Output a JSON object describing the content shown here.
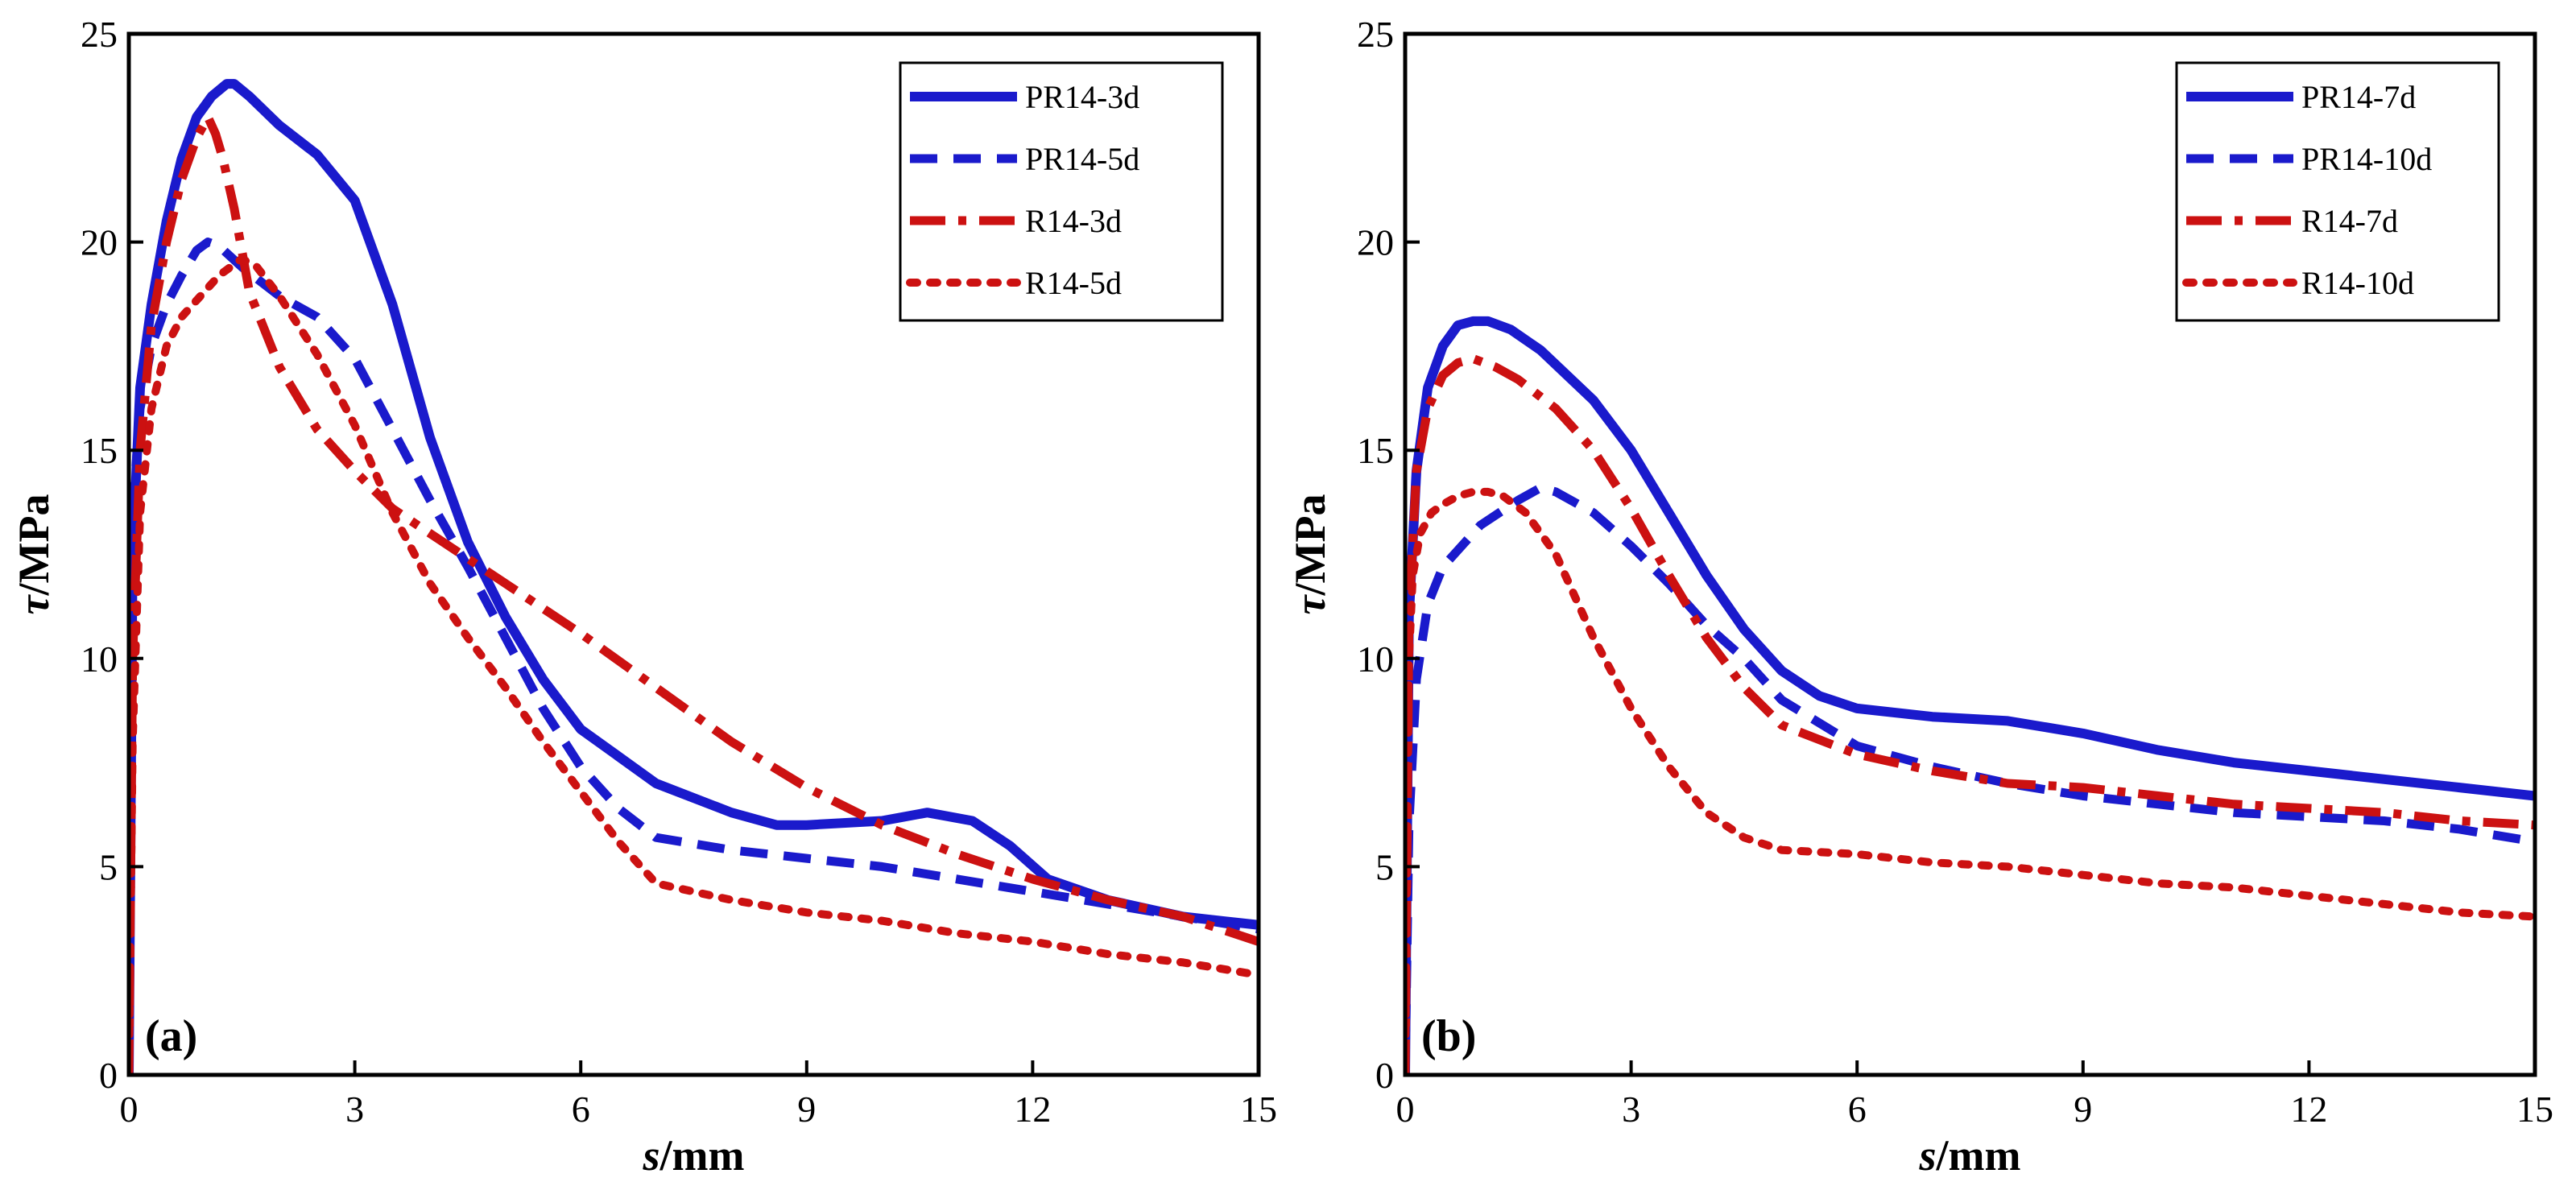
{
  "chart_data": [
    {
      "type": "line",
      "panel_label": "(a)",
      "xlabel_italic": "s",
      "xlabel_rest": "/mm",
      "ylabel_italic": "τ",
      "ylabel_rest": "/MPa",
      "xlim": [
        0,
        15
      ],
      "ylim": [
        0,
        25
      ],
      "xticks": [
        0,
        3,
        6,
        9,
        12,
        15
      ],
      "yticks": [
        0,
        5,
        10,
        15,
        20,
        25
      ],
      "legend_position": "top-right",
      "series": [
        {
          "name": "PR14-3d",
          "color": "#1a1acc",
          "style": "solid",
          "x": [
            0,
            0.05,
            0.15,
            0.3,
            0.5,
            0.7,
            0.9,
            1.1,
            1.3,
            1.4,
            1.6,
            2.0,
            2.5,
            3.0,
            3.5,
            4.0,
            4.5,
            5.0,
            5.5,
            6.0,
            7.0,
            8.0,
            8.6,
            9.0,
            10.0,
            10.6,
            11.2,
            11.7,
            12.2,
            13.0,
            14.0,
            15.0
          ],
          "y": [
            0,
            12.5,
            16.5,
            18.5,
            20.5,
            22.0,
            23.0,
            23.5,
            23.8,
            23.8,
            23.5,
            22.8,
            22.1,
            21.0,
            18.5,
            15.3,
            12.8,
            11.0,
            9.5,
            8.3,
            7.0,
            6.3,
            6.0,
            6.0,
            6.1,
            6.3,
            6.1,
            5.5,
            4.7,
            4.2,
            3.8,
            3.6
          ]
        },
        {
          "name": "PR14-5d",
          "color": "#1a1acc",
          "style": "dashed",
          "x": [
            0,
            0.05,
            0.15,
            0.3,
            0.5,
            0.7,
            0.9,
            1.05,
            1.2,
            1.5,
            2.0,
            2.5,
            3.0,
            3.5,
            4.0,
            4.5,
            5.0,
            5.5,
            6.0,
            6.5,
            7.0,
            8.0,
            9.0,
            10.0,
            11.0,
            12.0,
            13.0,
            14.0,
            15.0
          ],
          "y": [
            0,
            13.5,
            16.0,
            17.5,
            18.5,
            19.2,
            19.8,
            20.0,
            19.9,
            19.4,
            18.7,
            18.2,
            17.2,
            15.5,
            13.8,
            12.2,
            10.5,
            8.8,
            7.4,
            6.4,
            5.7,
            5.4,
            5.2,
            5.0,
            4.7,
            4.4,
            4.1,
            3.8,
            3.5
          ]
        },
        {
          "name": "R14-3d",
          "color": "#cc1111",
          "style": "dashdot",
          "x": [
            0,
            0.05,
            0.15,
            0.3,
            0.5,
            0.7,
            0.9,
            1.05,
            1.15,
            1.25,
            1.4,
            1.6,
            2.0,
            2.5,
            3.0,
            3.5,
            4.0,
            5.0,
            6.0,
            7.0,
            8.0,
            9.0,
            10.0,
            11.0,
            12.0,
            13.0,
            14.0,
            15.0
          ],
          "y": [
            0,
            10.0,
            15.0,
            18.0,
            20.0,
            21.5,
            22.5,
            23.0,
            22.6,
            22.0,
            20.8,
            18.8,
            17.0,
            15.5,
            14.5,
            13.6,
            13.0,
            11.8,
            10.6,
            9.3,
            8.0,
            6.9,
            6.0,
            5.3,
            4.7,
            4.2,
            3.8,
            3.2
          ]
        },
        {
          "name": "R14-5d",
          "color": "#cc1111",
          "style": "dotted",
          "x": [
            0,
            0.05,
            0.15,
            0.3,
            0.5,
            0.7,
            1.0,
            1.2,
            1.5,
            1.7,
            2.0,
            2.5,
            3.0,
            3.5,
            4.0,
            4.5,
            5.0,
            5.5,
            6.0,
            6.5,
            7.0,
            8.0,
            9.0,
            10.0,
            11.0,
            12.0,
            13.0,
            14.0,
            15.0
          ],
          "y": [
            0,
            8.0,
            13.5,
            16.0,
            17.5,
            18.2,
            18.8,
            19.2,
            19.6,
            19.4,
            18.7,
            17.3,
            15.6,
            13.5,
            11.8,
            10.5,
            9.3,
            8.0,
            6.8,
            5.6,
            4.6,
            4.2,
            3.9,
            3.7,
            3.4,
            3.2,
            2.9,
            2.7,
            2.4
          ]
        }
      ]
    },
    {
      "type": "line",
      "panel_label": "(b)",
      "xlabel_italic": "s",
      "xlabel_rest": "/mm",
      "ylabel_italic": "τ",
      "ylabel_rest": "/MPa",
      "xlim": [
        0,
        15
      ],
      "ylim": [
        0,
        25
      ],
      "xticks": [
        0,
        3,
        6,
        9,
        12,
        15
      ],
      "yticks": [
        0,
        5,
        10,
        15,
        20,
        25
      ],
      "legend_position": "top-right",
      "series": [
        {
          "name": "PR14-7d",
          "color": "#1a1acc",
          "style": "solid",
          "x": [
            0,
            0.05,
            0.15,
            0.3,
            0.5,
            0.7,
            0.9,
            1.1,
            1.4,
            1.8,
            2.5,
            3.0,
            3.5,
            4.0,
            4.5,
            5.0,
            5.5,
            6.0,
            7.0,
            8.0,
            9.0,
            10.0,
            11.0,
            12.0,
            13.0,
            14.0,
            15.0
          ],
          "y": [
            0,
            11.0,
            14.5,
            16.5,
            17.5,
            18.0,
            18.1,
            18.1,
            17.9,
            17.4,
            16.2,
            15.0,
            13.5,
            12.0,
            10.7,
            9.7,
            9.1,
            8.8,
            8.6,
            8.5,
            8.2,
            7.8,
            7.5,
            7.3,
            7.1,
            6.9,
            6.7
          ]
        },
        {
          "name": "PR14-10d",
          "color": "#1a1acc",
          "style": "dashed",
          "x": [
            0,
            0.05,
            0.15,
            0.3,
            0.5,
            0.8,
            1.0,
            1.5,
            1.8,
            2.0,
            2.5,
            3.0,
            3.5,
            4.0,
            4.5,
            5.0,
            6.0,
            7.0,
            8.0,
            9.0,
            10.0,
            11.0,
            12.0,
            13.0,
            14.0,
            15.0
          ],
          "y": [
            0,
            6.0,
            9.5,
            11.3,
            12.2,
            12.8,
            13.2,
            13.8,
            14.1,
            14.0,
            13.5,
            12.7,
            11.8,
            10.8,
            10.0,
            9.0,
            7.9,
            7.4,
            7.0,
            6.7,
            6.5,
            6.3,
            6.2,
            6.1,
            5.9,
            5.6
          ]
        },
        {
          "name": "R14-7d",
          "color": "#cc1111",
          "style": "dashdot",
          "x": [
            0,
            0.05,
            0.15,
            0.3,
            0.5,
            0.7,
            0.9,
            1.2,
            1.5,
            2.0,
            2.5,
            3.0,
            3.5,
            4.0,
            4.5,
            5.0,
            6.0,
            7.0,
            8.0,
            9.0,
            10.0,
            11.0,
            12.0,
            13.0,
            14.0,
            15.0
          ],
          "y": [
            0,
            11.0,
            14.5,
            16.0,
            16.8,
            17.1,
            17.2,
            17.0,
            16.7,
            16.0,
            15.0,
            13.6,
            12.0,
            10.5,
            9.3,
            8.4,
            7.7,
            7.3,
            7.0,
            6.9,
            6.7,
            6.5,
            6.4,
            6.3,
            6.1,
            6.0
          ]
        },
        {
          "name": "R14-10d",
          "color": "#cc1111",
          "style": "dotted",
          "x": [
            0,
            0.05,
            0.1,
            0.2,
            0.35,
            0.5,
            0.7,
            0.9,
            1.1,
            1.3,
            1.6,
            2.0,
            2.5,
            3.0,
            3.5,
            4.0,
            4.5,
            5.0,
            6.0,
            7.0,
            8.0,
            9.0,
            10.0,
            11.0,
            12.0,
            13.0,
            14.0,
            15.0
          ],
          "y": [
            0,
            10.0,
            12.0,
            13.0,
            13.5,
            13.7,
            13.9,
            14.0,
            14.0,
            13.9,
            13.5,
            12.5,
            10.5,
            8.8,
            7.4,
            6.3,
            5.7,
            5.4,
            5.3,
            5.1,
            5.0,
            4.8,
            4.6,
            4.5,
            4.3,
            4.1,
            3.9,
            3.8
          ]
        }
      ]
    }
  ]
}
